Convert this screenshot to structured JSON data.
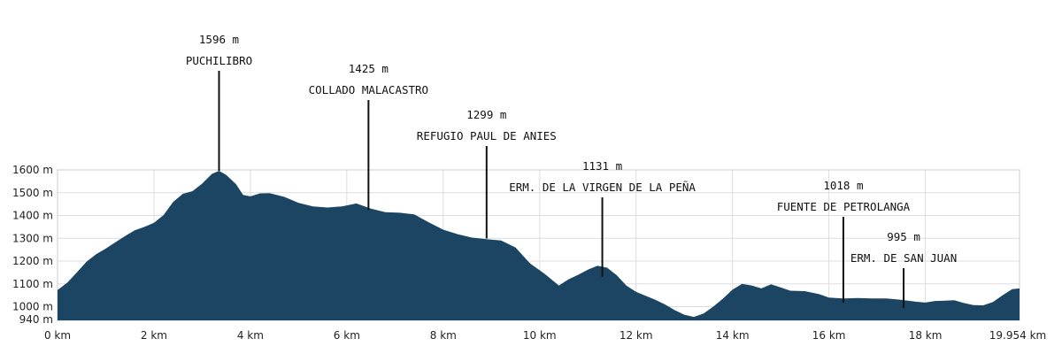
{
  "chart_data": {
    "type": "area",
    "xlim": [
      0,
      19.954
    ],
    "ylim": [
      940,
      1600
    ],
    "grid": true,
    "fill_color": "#1b4563",
    "x_ticks": [
      {
        "value": 0,
        "label": "0 km"
      },
      {
        "value": 2,
        "label": "2 km"
      },
      {
        "value": 4,
        "label": "4 km"
      },
      {
        "value": 6,
        "label": "6 km"
      },
      {
        "value": 8,
        "label": "8 km"
      },
      {
        "value": 10,
        "label": "10 km"
      },
      {
        "value": 12,
        "label": "12 km"
      },
      {
        "value": 14,
        "label": "14 km"
      },
      {
        "value": 16,
        "label": "16 km"
      },
      {
        "value": 18,
        "label": "18 km"
      },
      {
        "value": 19.954,
        "label": "19.954 km"
      }
    ],
    "y_ticks": [
      {
        "value": 940,
        "label": "940 m"
      },
      {
        "value": 1000,
        "label": "1000 m"
      },
      {
        "value": 1100,
        "label": "1100 m"
      },
      {
        "value": 1200,
        "label": "1200 m"
      },
      {
        "value": 1300,
        "label": "1300 m"
      },
      {
        "value": 1400,
        "label": "1400 m"
      },
      {
        "value": 1500,
        "label": "1500 m"
      },
      {
        "value": 1600,
        "label": "1600 m"
      }
    ],
    "profile": [
      [
        0,
        1073
      ],
      [
        0.2,
        1105
      ],
      [
        0.4,
        1150
      ],
      [
        0.6,
        1197
      ],
      [
        0.8,
        1230
      ],
      [
        1.0,
        1255
      ],
      [
        1.2,
        1283
      ],
      [
        1.4,
        1310
      ],
      [
        1.6,
        1335
      ],
      [
        1.8,
        1350
      ],
      [
        2.0,
        1368
      ],
      [
        2.2,
        1402
      ],
      [
        2.4,
        1460
      ],
      [
        2.6,
        1495
      ],
      [
        2.8,
        1507
      ],
      [
        3.0,
        1540
      ],
      [
        3.2,
        1582
      ],
      [
        3.35,
        1596
      ],
      [
        3.5,
        1578
      ],
      [
        3.7,
        1538
      ],
      [
        3.85,
        1490
      ],
      [
        4.0,
        1484
      ],
      [
        4.2,
        1497
      ],
      [
        4.4,
        1498
      ],
      [
        4.7,
        1482
      ],
      [
        5.0,
        1455
      ],
      [
        5.3,
        1440
      ],
      [
        5.6,
        1435
      ],
      [
        5.9,
        1440
      ],
      [
        6.2,
        1453
      ],
      [
        6.5,
        1430
      ],
      [
        6.8,
        1415
      ],
      [
        7.1,
        1412
      ],
      [
        7.4,
        1405
      ],
      [
        7.7,
        1370
      ],
      [
        8.0,
        1338
      ],
      [
        8.3,
        1318
      ],
      [
        8.6,
        1303
      ],
      [
        8.9,
        1296
      ],
      [
        9.2,
        1290
      ],
      [
        9.5,
        1260
      ],
      [
        9.8,
        1190
      ],
      [
        10.1,
        1145
      ],
      [
        10.4,
        1093
      ],
      [
        10.6,
        1120
      ],
      [
        10.8,
        1140
      ],
      [
        11.0,
        1162
      ],
      [
        11.2,
        1180
      ],
      [
        11.4,
        1171
      ],
      [
        11.6,
        1138
      ],
      [
        11.8,
        1092
      ],
      [
        12.0,
        1065
      ],
      [
        12.2,
        1048
      ],
      [
        12.4,
        1030
      ],
      [
        12.6,
        1010
      ],
      [
        12.8,
        985
      ],
      [
        13.0,
        965
      ],
      [
        13.2,
        955
      ],
      [
        13.4,
        970
      ],
      [
        13.6,
        1000
      ],
      [
        13.8,
        1035
      ],
      [
        14.0,
        1075
      ],
      [
        14.2,
        1100
      ],
      [
        14.4,
        1093
      ],
      [
        14.6,
        1080
      ],
      [
        14.8,
        1098
      ],
      [
        15.0,
        1085
      ],
      [
        15.2,
        1070
      ],
      [
        15.5,
        1068
      ],
      [
        15.8,
        1055
      ],
      [
        16.0,
        1040
      ],
      [
        16.3,
        1036
      ],
      [
        16.6,
        1038
      ],
      [
        16.9,
        1036
      ],
      [
        17.2,
        1036
      ],
      [
        17.5,
        1030
      ],
      [
        17.8,
        1022
      ],
      [
        18.0,
        1018
      ],
      [
        18.2,
        1025
      ],
      [
        18.4,
        1026
      ],
      [
        18.6,
        1028
      ],
      [
        18.8,
        1016
      ],
      [
        19.0,
        1007
      ],
      [
        19.2,
        1006
      ],
      [
        19.4,
        1020
      ],
      [
        19.6,
        1050
      ],
      [
        19.8,
        1077
      ],
      [
        19.954,
        1080
      ]
    ],
    "waypoints": [
      {
        "name": "PUCHILIBRO",
        "elevation_label": "1596 m",
        "x": 3.35,
        "elevation": 1596
      },
      {
        "name": "COLLADO MALACASTRO",
        "elevation_label": "1425 m",
        "x": 6.45,
        "elevation": 1425
      },
      {
        "name": "REFUGIO PAUL DE ANIES",
        "elevation_label": "1299 m",
        "x": 8.9,
        "elevation": 1299
      },
      {
        "name": "ERM. DE LA VIRGEN DE LA PEÑA",
        "elevation_label": "1131 m",
        "x": 11.3,
        "elevation": 1131
      },
      {
        "name": "FUENTE DE PETROLANGA",
        "elevation_label": "1018 m",
        "x": 16.3,
        "elevation": 1018
      },
      {
        "name": "ERM. DE SAN JUAN",
        "elevation_label": "995 m",
        "x": 17.55,
        "elevation": 995
      }
    ]
  }
}
